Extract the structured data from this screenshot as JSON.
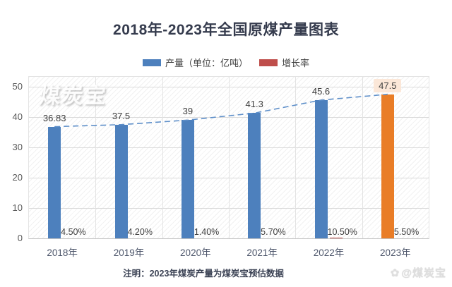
{
  "header": {
    "title": "2018年-2023年全国原煤产量图表"
  },
  "legend": {
    "items": [
      {
        "label": "产量（单位：亿吨）",
        "color": "#4d80bd"
      },
      {
        "label": "增长率",
        "color": "#bf4e4b"
      }
    ]
  },
  "watermarks": {
    "plot": "煤炭宝",
    "corner_icon": "✿",
    "corner": "@煤炭宝"
  },
  "footer": {
    "note": "注明：2023年煤炭产量为煤炭宝预估数据"
  },
  "chart_data": {
    "type": "bar",
    "title": "2018年-2023年全国原煤产量图表",
    "categories": [
      "2018年",
      "2019年",
      "2020年",
      "2021年",
      "2022年",
      "2023年"
    ],
    "series": [
      {
        "name": "产量（单位：亿吨）",
        "type": "bar",
        "values": [
          36.83,
          37.5,
          39,
          41.3,
          45.6,
          47.5
        ],
        "labels": [
          "36.83",
          "37.5",
          "39",
          "41.3",
          "45.6",
          "47.5"
        ],
        "color": "#4d80bd",
        "highlight_color": "#e97d27"
      },
      {
        "name": "增长率",
        "type": "bar",
        "values_percent": [
          4.5,
          4.2,
          1.4,
          5.7,
          10.5,
          5.5
        ],
        "values_axis": [
          0.045,
          0.042,
          0.014,
          0.057,
          0.105,
          0.055
        ],
        "labels": [
          "4.50%",
          "4.20%",
          "1.40%",
          "5.70%",
          "10.50%",
          "5.50%"
        ],
        "color": "#bf4e4b"
      }
    ],
    "trendline": {
      "style": "dashed",
      "color": "#5e8fc9",
      "through": "production-bar-tops"
    },
    "ylim": [
      0,
      53.5
    ],
    "yticks": [
      0,
      10,
      20,
      30,
      40,
      50
    ],
    "grid": true,
    "legend_position": "top",
    "highlight": {
      "index": 5,
      "label_bg": "#fbe7d8"
    },
    "note": "注明：2023年煤炭产量为煤炭宝预估数据"
  }
}
